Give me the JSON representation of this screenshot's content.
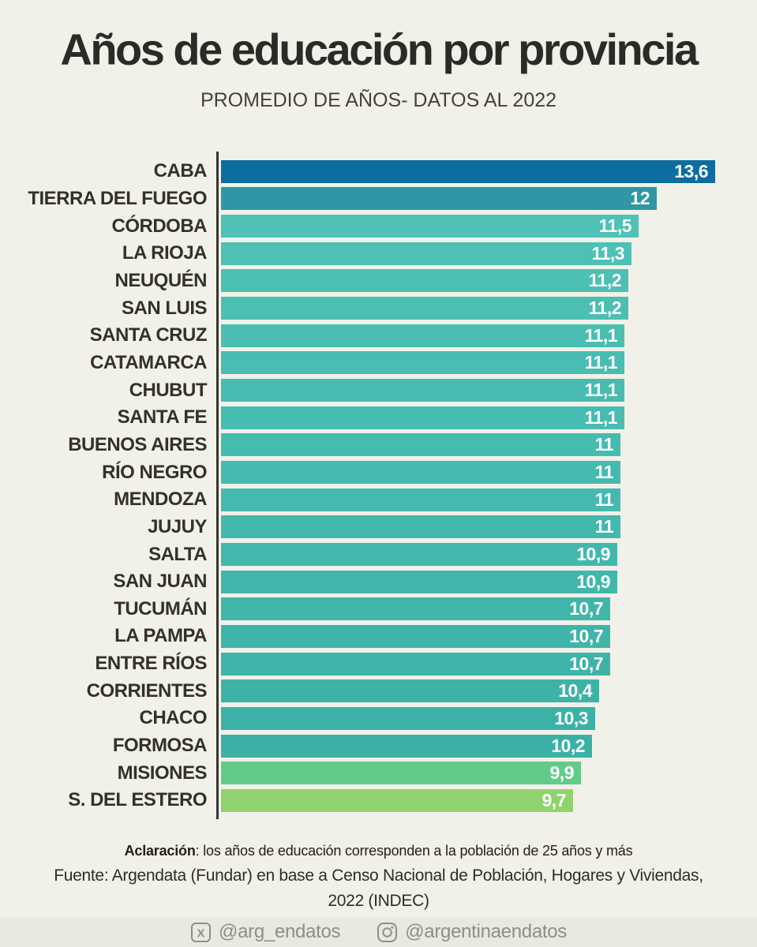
{
  "title": "Años de educación por provincia",
  "subtitle": "PROMEDIO DE AÑOS- DATOS AL 2022",
  "chart_data": {
    "type": "bar",
    "orientation": "horizontal",
    "title": "Años de educación por provincia",
    "subtitle": "PROMEDIO DE AÑOS- DATOS AL 2022",
    "xlim": [
      0,
      13.6
    ],
    "grid": false,
    "categories": [
      "CABA",
      "TIERRA DEL FUEGO",
      "CÓRDOBA",
      "LA RIOJA",
      "NEUQUÉN",
      "SAN LUIS",
      "SANTA CRUZ",
      "CATAMARCA",
      "CHUBUT",
      "SANTA FE",
      "BUENOS AIRES",
      "RÍO NEGRO",
      "MENDOZA",
      "JUJUY",
      "SALTA",
      "SAN JUAN",
      "TUCUMÁN",
      "LA PAMPA",
      "ENTRE RÍOS",
      "CORRIENTES",
      "CHACO",
      "FORMOSA",
      "MISIONES",
      "S. DEL ESTERO"
    ],
    "values": [
      13.6,
      12,
      11.5,
      11.3,
      11.2,
      11.2,
      11.1,
      11.1,
      11.1,
      11.1,
      11,
      11,
      11,
      11,
      10.9,
      10.9,
      10.7,
      10.7,
      10.7,
      10.4,
      10.3,
      10.2,
      9.9,
      9.7
    ],
    "value_labels": [
      "13,6",
      "12",
      "11,5",
      "11,3",
      "11,2",
      "11,2",
      "11,1",
      "11,1",
      "11,1",
      "11,1",
      "11",
      "11",
      "11",
      "11",
      "10,9",
      "10,9",
      "10,7",
      "10,7",
      "10,7",
      "10,4",
      "10,3",
      "10,2",
      "9,9",
      "9,7"
    ],
    "bar_colors": [
      "#0d6da0",
      "#2d97a5",
      "#4fc1b6",
      "#4ec0b5",
      "#4dc0b4",
      "#4cbfb3",
      "#4abeb2",
      "#49bdb2",
      "#48bcb1",
      "#47bcb0",
      "#46bbaf",
      "#45baae",
      "#44b9ae",
      "#43b8ad",
      "#42b8ac",
      "#41b7ab",
      "#40b6aa",
      "#3fb5aa",
      "#3eb4a9",
      "#3db3a8",
      "#3cb2a7",
      "#3bb1a6",
      "#63cb8a",
      "#90d36e"
    ]
  },
  "footer": {
    "note_bold": "Aclaración",
    "note_rest": ": los años de educación corresponden a la población de 25 años y más",
    "source_line1": "Fuente: Argendata (Fundar) en base a Censo Nacional de Población, Hogares y Viviendas,",
    "source_line2": "2022 (INDEC)",
    "social": [
      {
        "icon": "x-icon",
        "handle": "@arg_endatos"
      },
      {
        "icon": "instagram-icon",
        "handle": "@argentinaendatos"
      }
    ]
  },
  "colors": {
    "background": "#f2f1e9",
    "footer_strip": "#e9e8e1",
    "axis": "#35342f",
    "title_text": "#2b2a26",
    "label_text": "#33312c",
    "value_text": "#ffffff",
    "social_text": "#8f8e87"
  }
}
